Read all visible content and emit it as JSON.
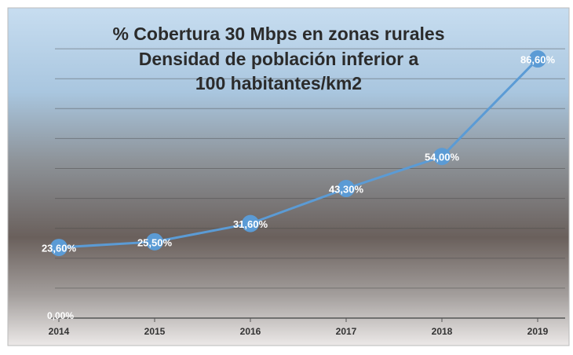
{
  "chart_data": {
    "type": "line",
    "title": [
      "% Cobertura 30 Mbps en zonas rurales",
      "Densidad de población inferior a",
      "100 habitantes/km2"
    ],
    "categories": [
      "2014",
      "2015",
      "2016",
      "2017",
      "2018",
      "2019"
    ],
    "series": [
      {
        "name": "% Cobertura",
        "color": "#5b9bd5",
        "values": [
          23.6,
          25.5,
          31.6,
          43.3,
          54.0,
          86.6
        ],
        "value_labels": [
          "23,60%",
          "25,50%",
          "31,60%",
          "43,30%",
          "54,00%",
          "86,60%"
        ]
      }
    ],
    "ylim": [
      0,
      100
    ],
    "yticks": [
      {
        "value": 0,
        "label": "0,00%"
      }
    ],
    "ygrid": [
      10,
      20,
      30,
      40,
      50,
      60,
      70,
      80,
      90
    ],
    "grid": true
  }
}
